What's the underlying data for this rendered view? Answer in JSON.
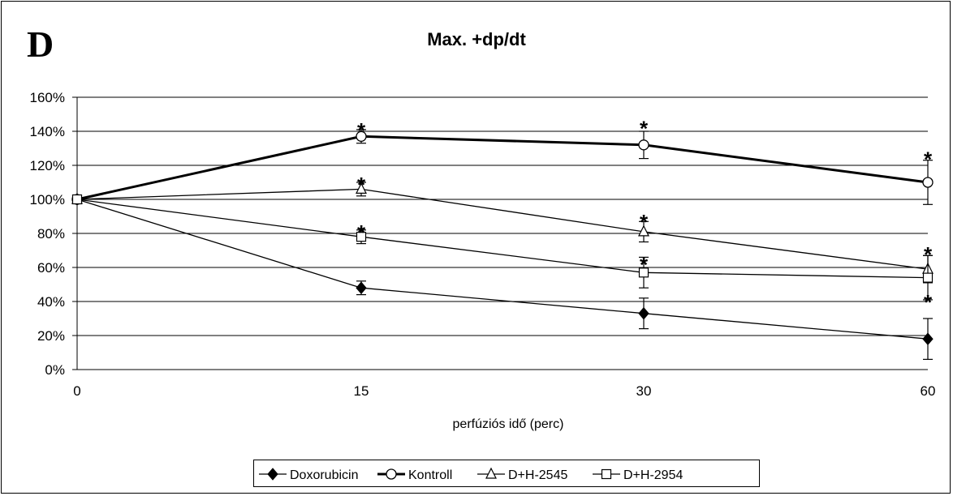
{
  "panel_letter": "D",
  "chart_data": {
    "type": "line",
    "title": "Max. +dp/dt",
    "xlabel": "perfúziós idő (perc)",
    "ylabel": "",
    "categories": [
      "0",
      "15",
      "30",
      "60"
    ],
    "y_ticks": [
      "0%",
      "20%",
      "40%",
      "60%",
      "80%",
      "100%",
      "120%",
      "140%",
      "160%"
    ],
    "ylim": [
      0,
      160
    ],
    "grid": true,
    "legend_position": "bottom",
    "series": [
      {
        "name": "Doxorubicin",
        "marker": "diamond-filled",
        "line_width": "thin",
        "values": [
          100,
          48,
          33,
          18
        ],
        "errors": [
          0,
          4,
          9,
          12
        ]
      },
      {
        "name": "Kontroll",
        "marker": "circle-open",
        "line_width": "thick",
        "values": [
          100,
          137,
          132,
          110
        ],
        "errors": [
          0,
          4,
          8,
          13
        ]
      },
      {
        "name": "D+H-2545",
        "marker": "triangle-open",
        "line_width": "thin",
        "values": [
          100,
          106,
          81,
          59
        ],
        "errors": [
          0,
          4,
          6,
          8
        ]
      },
      {
        "name": "D+H-2954",
        "marker": "square-open",
        "line_width": "thin",
        "values": [
          100,
          78,
          57,
          54
        ],
        "errors": [
          0,
          4,
          9,
          13
        ]
      }
    ],
    "annotations": [
      {
        "text": "*",
        "x": "15",
        "y": 142
      },
      {
        "text": "*",
        "x": "15",
        "y": 110
      },
      {
        "text": "*",
        "x": "15",
        "y": 82
      },
      {
        "text": "*",
        "x": "30",
        "y": 143
      },
      {
        "text": "*",
        "x": "30",
        "y": 88
      },
      {
        "text": "*",
        "x": "30",
        "y": 63
      },
      {
        "text": "*",
        "x": "60",
        "y": 125
      },
      {
        "text": "*",
        "x": "60",
        "y": 69
      },
      {
        "text": "*",
        "x": "60",
        "y": 41
      }
    ]
  }
}
